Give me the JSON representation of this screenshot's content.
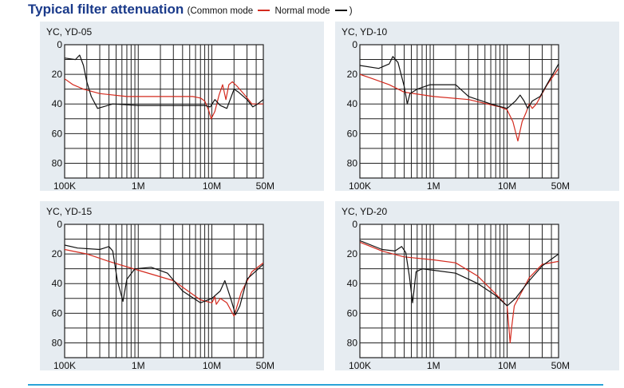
{
  "header": {
    "title": "Typical filter attenuation",
    "legend_open": "(Common mode",
    "legend_mid": "Normal mode",
    "legend_close": ")"
  },
  "colors": {
    "common_mode": "#d42a1e",
    "normal_mode": "#111111",
    "panel": "#e6ecf1",
    "title": "#1a3a8a",
    "rule": "#2aa3d8"
  },
  "chart_data": [
    {
      "type": "line",
      "title": "YC, YD-05",
      "x_scale": "log",
      "xlim": [
        100000,
        50000000
      ],
      "y_inverted": true,
      "ylim": [
        0,
        90
      ],
      "x_tick_labels": [
        "100K",
        "1M",
        "10M",
        "50M"
      ],
      "y_tick_labels": [
        "0",
        "20",
        "40",
        "60",
        "80"
      ],
      "series": [
        {
          "name": "Common mode",
          "color": "#d42a1e",
          "points": [
            [
              100000,
              23
            ],
            [
              130000,
              27
            ],
            [
              180000,
              30
            ],
            [
              300000,
              33
            ],
            [
              700000,
              35
            ],
            [
              3000000,
              35
            ],
            [
              5500000,
              35
            ],
            [
              7000000,
              36
            ],
            [
              8000000,
              38
            ],
            [
              9000000,
              44
            ],
            [
              9800000,
              50
            ],
            [
              11000000,
              45
            ],
            [
              12500000,
              34
            ],
            [
              14000000,
              27
            ],
            [
              15500000,
              37
            ],
            [
              17000000,
              27
            ],
            [
              19000000,
              25
            ],
            [
              22000000,
              28
            ],
            [
              28000000,
              34
            ],
            [
              35000000,
              40
            ],
            [
              50000000,
              40
            ]
          ]
        },
        {
          "name": "Normal mode",
          "color": "#111111",
          "points": [
            [
              100000,
              9
            ],
            [
              140000,
              10
            ],
            [
              160000,
              7
            ],
            [
              180000,
              14
            ],
            [
              200000,
              25
            ],
            [
              230000,
              35
            ],
            [
              280000,
              43
            ],
            [
              330000,
              42
            ],
            [
              450000,
              40
            ],
            [
              1000000,
              41
            ],
            [
              5000000,
              41
            ],
            [
              8000000,
              41
            ],
            [
              9500000,
              42
            ],
            [
              11000000,
              37
            ],
            [
              13000000,
              41
            ],
            [
              16000000,
              43
            ],
            [
              20000000,
              30
            ],
            [
              23000000,
              32
            ],
            [
              30000000,
              37
            ],
            [
              36000000,
              42
            ],
            [
              42000000,
              40
            ],
            [
              50000000,
              37
            ]
          ]
        }
      ]
    },
    {
      "type": "line",
      "title": "YC, YD-10",
      "x_scale": "log",
      "xlim": [
        100000,
        50000000
      ],
      "y_inverted": true,
      "ylim": [
        0,
        90
      ],
      "x_tick_labels": [
        "100K",
        "1M",
        "10M",
        "50M"
      ],
      "y_tick_labels": [
        "0",
        "20",
        "40",
        "60",
        "80"
      ],
      "series": [
        {
          "name": "Common mode",
          "color": "#d42a1e",
          "points": [
            [
              100000,
              20
            ],
            [
              150000,
              23
            ],
            [
              250000,
              27
            ],
            [
              400000,
              32
            ],
            [
              1000000,
              35
            ],
            [
              3000000,
              37
            ],
            [
              8000000,
              42
            ],
            [
              10000000,
              44
            ],
            [
              12000000,
              52
            ],
            [
              14000000,
              65
            ],
            [
              16000000,
              52
            ],
            [
              18000000,
              46
            ],
            [
              20000000,
              40
            ],
            [
              22000000,
              43
            ],
            [
              25000000,
              40
            ],
            [
              35000000,
              27
            ],
            [
              50000000,
              16
            ]
          ]
        },
        {
          "name": "Normal mode",
          "color": "#111111",
          "points": [
            [
              100000,
              14
            ],
            [
              180000,
              16
            ],
            [
              250000,
              13
            ],
            [
              280000,
              8
            ],
            [
              330000,
              12
            ],
            [
              400000,
              28
            ],
            [
              440000,
              40
            ],
            [
              480000,
              33
            ],
            [
              600000,
              30
            ],
            [
              900000,
              27
            ],
            [
              2000000,
              27
            ],
            [
              3000000,
              35
            ],
            [
              6000000,
              40
            ],
            [
              10000000,
              43
            ],
            [
              13000000,
              38
            ],
            [
              15000000,
              34
            ],
            [
              17000000,
              38
            ],
            [
              19000000,
              43
            ],
            [
              22000000,
              38
            ],
            [
              28000000,
              35
            ],
            [
              50000000,
              13
            ]
          ]
        }
      ]
    },
    {
      "type": "line",
      "title": "YC, YD-15",
      "x_scale": "log",
      "xlim": [
        100000,
        50000000
      ],
      "y_inverted": true,
      "ylim": [
        0,
        90
      ],
      "x_tick_labels": [
        "100K",
        "1M",
        "10M",
        "50M"
      ],
      "y_tick_labels": [
        "0",
        "20",
        "40",
        "60",
        "80"
      ],
      "series": [
        {
          "name": "Common mode",
          "color": "#d42a1e",
          "points": [
            [
              100000,
              17
            ],
            [
              200000,
              20
            ],
            [
              400000,
              25
            ],
            [
              1000000,
              31
            ],
            [
              3000000,
              38
            ],
            [
              7000000,
              51
            ],
            [
              10000000,
              53
            ],
            [
              11000000,
              49
            ],
            [
              11500000,
              54
            ],
            [
              13000000,
              50
            ],
            [
              16000000,
              53
            ],
            [
              20000000,
              62
            ],
            [
              25000000,
              46
            ],
            [
              35000000,
              32
            ],
            [
              50000000,
              26
            ]
          ]
        },
        {
          "name": "Normal mode",
          "color": "#111111",
          "points": [
            [
              100000,
              14
            ],
            [
              150000,
              16
            ],
            [
              300000,
              17
            ],
            [
              400000,
              15
            ],
            [
              450000,
              18
            ],
            [
              520000,
              38
            ],
            [
              620000,
              52
            ],
            [
              700000,
              37
            ],
            [
              900000,
              30
            ],
            [
              1500000,
              29
            ],
            [
              2500000,
              33
            ],
            [
              4000000,
              45
            ],
            [
              7000000,
              53
            ],
            [
              10000000,
              50
            ],
            [
              13000000,
              45
            ],
            [
              15000000,
              38
            ],
            [
              18000000,
              50
            ],
            [
              21000000,
              61
            ],
            [
              24000000,
              55
            ],
            [
              30000000,
              37
            ],
            [
              50000000,
              27
            ]
          ]
        }
      ]
    },
    {
      "type": "line",
      "title": "YC, YD-20",
      "x_scale": "log",
      "xlim": [
        100000,
        50000000
      ],
      "y_inverted": true,
      "ylim": [
        0,
        90
      ],
      "x_tick_labels": [
        "100K",
        "1M",
        "10M",
        "50M"
      ],
      "y_tick_labels": [
        "0",
        "20",
        "40",
        "60",
        "80"
      ],
      "series": [
        {
          "name": "Common mode",
          "color": "#d42a1e",
          "points": [
            [
              100000,
              12
            ],
            [
              200000,
              18
            ],
            [
              400000,
              22
            ],
            [
              1000000,
              24
            ],
            [
              2000000,
              26
            ],
            [
              4000000,
              35
            ],
            [
              7000000,
              47
            ],
            [
              10000000,
              55
            ],
            [
              10500000,
              68
            ],
            [
              11000000,
              80
            ],
            [
              11500000,
              70
            ],
            [
              12500000,
              55
            ],
            [
              20000000,
              36
            ],
            [
              30000000,
              27
            ],
            [
              50000000,
              25
            ]
          ]
        },
        {
          "name": "Normal mode",
          "color": "#111111",
          "points": [
            [
              100000,
              11
            ],
            [
              200000,
              17
            ],
            [
              300000,
              18
            ],
            [
              370000,
              15
            ],
            [
              420000,
              19
            ],
            [
              470000,
              35
            ],
            [
              520000,
              53
            ],
            [
              580000,
              32
            ],
            [
              700000,
              30
            ],
            [
              1000000,
              31
            ],
            [
              2000000,
              33
            ],
            [
              4000000,
              40
            ],
            [
              7000000,
              48
            ],
            [
              10000000,
              55
            ],
            [
              13000000,
              50
            ],
            [
              20000000,
              38
            ],
            [
              30000000,
              28
            ],
            [
              50000000,
              20
            ]
          ]
        }
      ]
    }
  ]
}
